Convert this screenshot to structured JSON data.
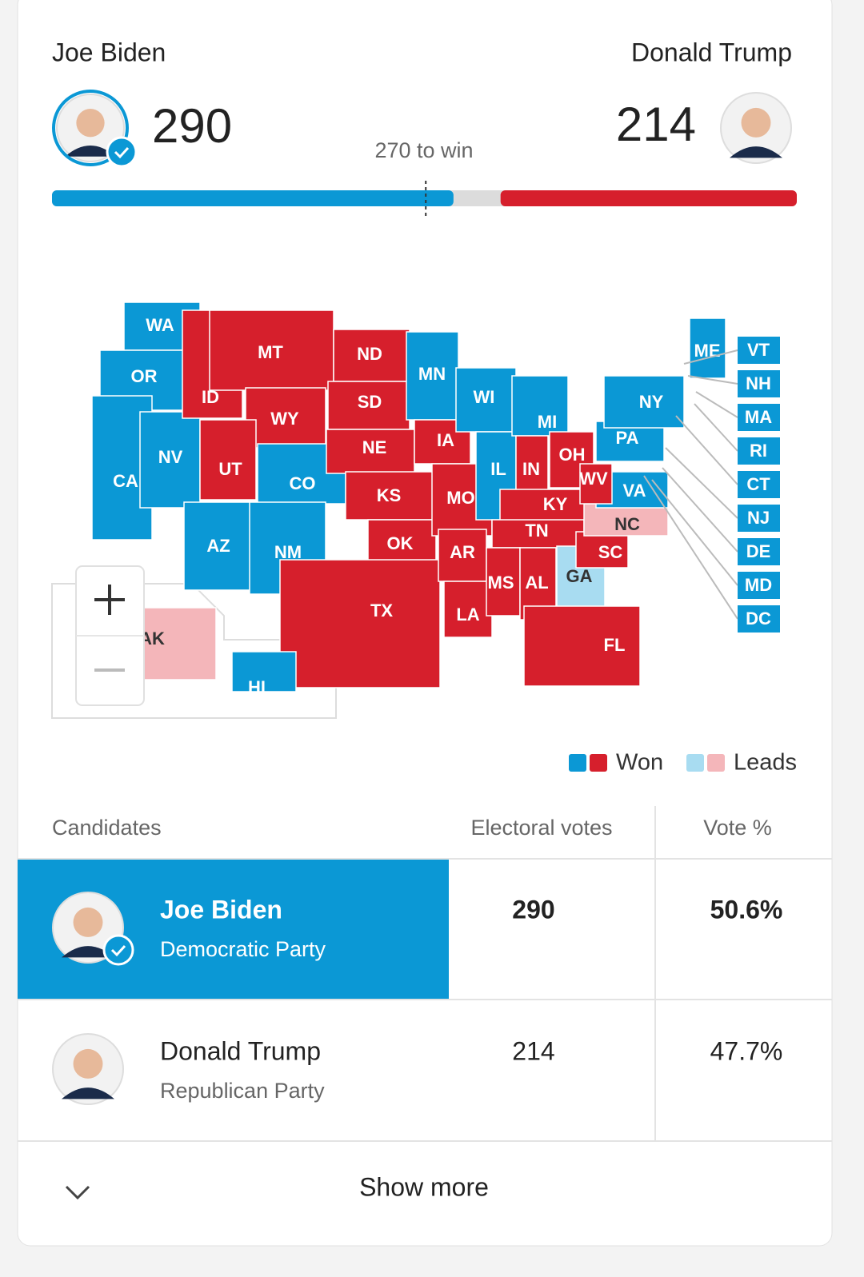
{
  "header": {
    "candidates": [
      {
        "name": "Joe Biden",
        "party": "Democratic Party",
        "votes": 290,
        "vote_pct": "50.6%",
        "color": "#0b98d5"
      },
      {
        "name": "Donald Trump",
        "party": "Republican Party",
        "votes": 214,
        "vote_pct": "47.7%",
        "color": "#d61f2c"
      }
    ],
    "threshold_label": "270 to win"
  },
  "bar": {
    "xlim": [
      0,
      538
    ],
    "threshold": 270
  },
  "map": {
    "states": [
      {
        "label": "WA",
        "color": "#0b98d5"
      },
      {
        "label": "OR",
        "color": "#0b98d5"
      },
      {
        "label": "CA",
        "color": "#0b98d5"
      },
      {
        "label": "NV",
        "color": "#0b98d5"
      },
      {
        "label": "ID",
        "color": "#d61f2c"
      },
      {
        "label": "MT",
        "color": "#d61f2c"
      },
      {
        "label": "WY",
        "color": "#d61f2c"
      },
      {
        "label": "UT",
        "color": "#d61f2c"
      },
      {
        "label": "CO",
        "color": "#0b98d5"
      },
      {
        "label": "AZ",
        "color": "#0b98d5"
      },
      {
        "label": "NM",
        "color": "#0b98d5"
      },
      {
        "label": "ND",
        "color": "#d61f2c"
      },
      {
        "label": "SD",
        "color": "#d61f2c"
      },
      {
        "label": "NE",
        "color": "#d61f2c"
      },
      {
        "label": "KS",
        "color": "#d61f2c"
      },
      {
        "label": "OK",
        "color": "#d61f2c"
      },
      {
        "label": "TX",
        "color": "#d61f2c"
      },
      {
        "label": "MN",
        "color": "#0b98d5"
      },
      {
        "label": "IA",
        "color": "#d61f2c"
      },
      {
        "label": "MO",
        "color": "#d61f2c"
      },
      {
        "label": "AR",
        "color": "#d61f2c"
      },
      {
        "label": "LA",
        "color": "#d61f2c"
      },
      {
        "label": "WI",
        "color": "#0b98d5"
      },
      {
        "label": "IL",
        "color": "#0b98d5"
      },
      {
        "label": "MI",
        "color": "#0b98d5"
      },
      {
        "label": "IN",
        "color": "#d61f2c"
      },
      {
        "label": "OH",
        "color": "#d61f2c"
      },
      {
        "label": "KY",
        "color": "#d61f2c"
      },
      {
        "label": "TN",
        "color": "#d61f2c"
      },
      {
        "label": "MS",
        "color": "#d61f2c"
      },
      {
        "label": "AL",
        "color": "#d61f2c"
      },
      {
        "label": "GA",
        "color": "#a8dcf1"
      },
      {
        "label": "FL",
        "color": "#d61f2c"
      },
      {
        "label": "SC",
        "color": "#d61f2c"
      },
      {
        "label": "NC",
        "color": "#f4b6ba"
      },
      {
        "label": "VA",
        "color": "#0b98d5"
      },
      {
        "label": "WV",
        "color": "#d61f2c"
      },
      {
        "label": "PA",
        "color": "#0b98d5"
      },
      {
        "label": "NY",
        "color": "#0b98d5"
      },
      {
        "label": "ME",
        "color": "#0b98d5"
      },
      {
        "label": "AK",
        "color": "#f4b6ba"
      },
      {
        "label": "HI",
        "color": "#0b98d5"
      }
    ],
    "small_states": [
      {
        "label": "VT",
        "color": "#0b98d5"
      },
      {
        "label": "NH",
        "color": "#0b98d5"
      },
      {
        "label": "MA",
        "color": "#0b98d5"
      },
      {
        "label": "RI",
        "color": "#0b98d5"
      },
      {
        "label": "CT",
        "color": "#0b98d5"
      },
      {
        "label": "NJ",
        "color": "#0b98d5"
      },
      {
        "label": "DE",
        "color": "#0b98d5"
      },
      {
        "label": "MD",
        "color": "#0b98d5"
      },
      {
        "label": "DC",
        "color": "#0b98d5"
      }
    ],
    "legend": [
      {
        "label": "Won",
        "colors": [
          "#0b98d5",
          "#d61f2c"
        ]
      },
      {
        "label": "Leads",
        "colors": [
          "#a8dcf1",
          "#f4b6ba"
        ]
      }
    ]
  },
  "table": {
    "headers": [
      "Candidates",
      "Electoral votes",
      "Vote %"
    ]
  },
  "footer": {
    "button": "Show more"
  }
}
